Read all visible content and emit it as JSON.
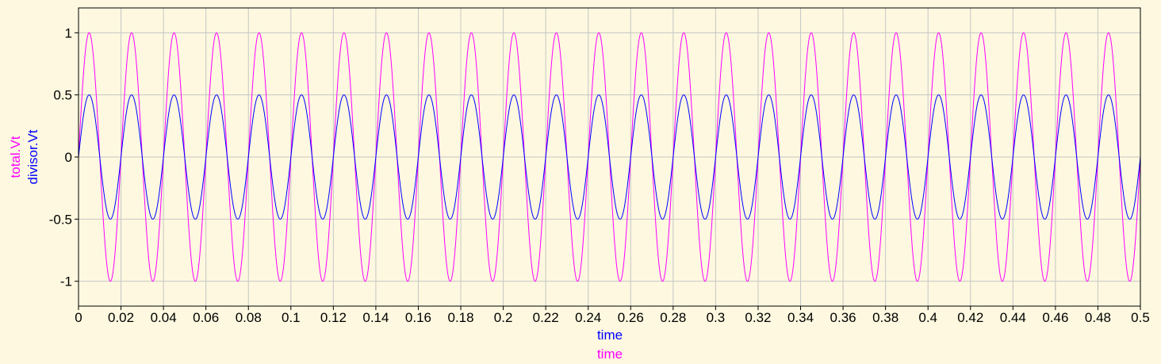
{
  "colors": {
    "background": "#fdf8df",
    "grid": "#c6c6c6",
    "axis": "#000000",
    "total": "#ff00ff",
    "divisor": "#0000ff"
  },
  "chart_data": {
    "type": "line",
    "grid": true,
    "xlim": [
      0,
      0.5
    ],
    "ylim": [
      -1.2,
      1.2
    ],
    "x_ticks": [
      0,
      0.02,
      0.04,
      0.06,
      0.08,
      0.1,
      0.12,
      0.14,
      0.16,
      0.18,
      0.2,
      0.22,
      0.24,
      0.26,
      0.28,
      0.3,
      0.32,
      0.34,
      0.36,
      0.38,
      0.4,
      0.42,
      0.44,
      0.46,
      0.48,
      0.5
    ],
    "x_tick_labels": [
      "0",
      "0.02",
      "0.04",
      "0.06",
      "0.08",
      "0.1",
      "0.12",
      "0.14",
      "0.16",
      "0.18",
      "0.2",
      "0.22",
      "0.24",
      "0.26",
      "0.28",
      "0.3",
      "0.32",
      "0.34",
      "0.36",
      "0.38",
      "0.4",
      "0.42",
      "0.44",
      "0.46",
      "0.48",
      "0.5"
    ],
    "y_ticks": [
      1,
      0.5,
      0,
      -0.5,
      -1
    ],
    "y_tick_labels": [
      "1",
      "0.5",
      "0",
      "-0.5",
      "-1"
    ],
    "xlabels": [
      "time",
      "time"
    ],
    "ylabels": [
      "total.Vt",
      "divisor.Vt"
    ],
    "series": [
      {
        "name": "total.Vt",
        "color": "#ff00ff",
        "waveform": "sine",
        "amplitude": 1,
        "frequency_hz": 50,
        "phase": 0
      },
      {
        "name": "divisor.Vt",
        "color": "#0000ff",
        "waveform": "sine",
        "amplitude": 0.5,
        "frequency_hz": 50,
        "phase": 0
      }
    ]
  }
}
